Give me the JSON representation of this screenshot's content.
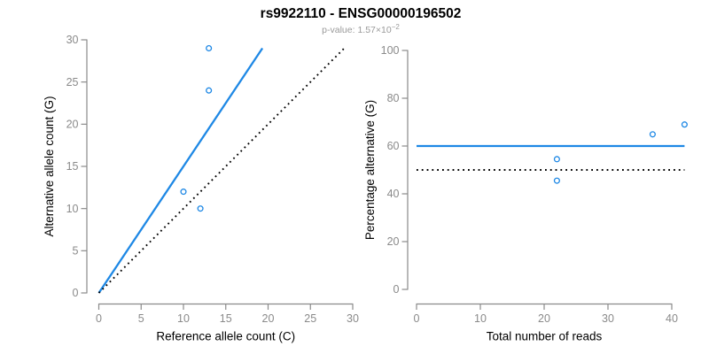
{
  "figure": {
    "title": "rs9922110 - ENSG00000196502",
    "subtitle": {
      "label": "p-value:",
      "mantissa": "1.57×10",
      "exponent": "−2"
    }
  },
  "colors": {
    "accent_blue": "#1E88E5",
    "axis_gray": "#8a8a8a",
    "title_black": "#000000",
    "subtitle_gray": "#9a9a9a"
  },
  "chart_data": [
    {
      "type": "scatter",
      "name": "allele-counts",
      "xlabel": "Reference allele count (C)",
      "ylabel": "Alternative allele count (G)",
      "xlim": [
        0,
        30
      ],
      "ylim": [
        0,
        30
      ],
      "xticks": [
        0,
        5,
        10,
        15,
        20,
        25,
        30
      ],
      "yticks": [
        0,
        5,
        10,
        15,
        20,
        25,
        30
      ],
      "grid": false,
      "points": [
        [
          13,
          29
        ],
        [
          13,
          24
        ],
        [
          10,
          12
        ],
        [
          12,
          10
        ]
      ],
      "lines": [
        {
          "name": "fit-line",
          "style": "solid",
          "color": "#1E88E5",
          "from": [
            0,
            0
          ],
          "to": [
            19.33,
            29
          ]
        },
        {
          "name": "identity-line",
          "style": "dotted",
          "color": "#000000",
          "from": [
            0,
            0
          ],
          "to": [
            29,
            29
          ]
        }
      ]
    },
    {
      "type": "scatter",
      "name": "percentage-alternative",
      "xlabel": "Total number of reads",
      "ylabel": "Percentage alternative (G)",
      "xlim": [
        0,
        42
      ],
      "ylim": [
        0,
        100
      ],
      "xticks": [
        0,
        10,
        20,
        30,
        40
      ],
      "yticks": [
        0,
        20,
        40,
        60,
        80,
        100
      ],
      "grid": false,
      "points": [
        [
          22,
          54.5
        ],
        [
          22,
          45.5
        ],
        [
          37,
          64.9
        ],
        [
          42,
          69
        ]
      ],
      "lines": [
        {
          "name": "estimate-line",
          "style": "solid",
          "color": "#1E88E5",
          "from": [
            0,
            60
          ],
          "to": [
            42,
            60
          ]
        },
        {
          "name": "expected-line",
          "style": "dotted",
          "color": "#000000",
          "from": [
            0,
            50
          ],
          "to": [
            42,
            50
          ]
        }
      ]
    }
  ]
}
